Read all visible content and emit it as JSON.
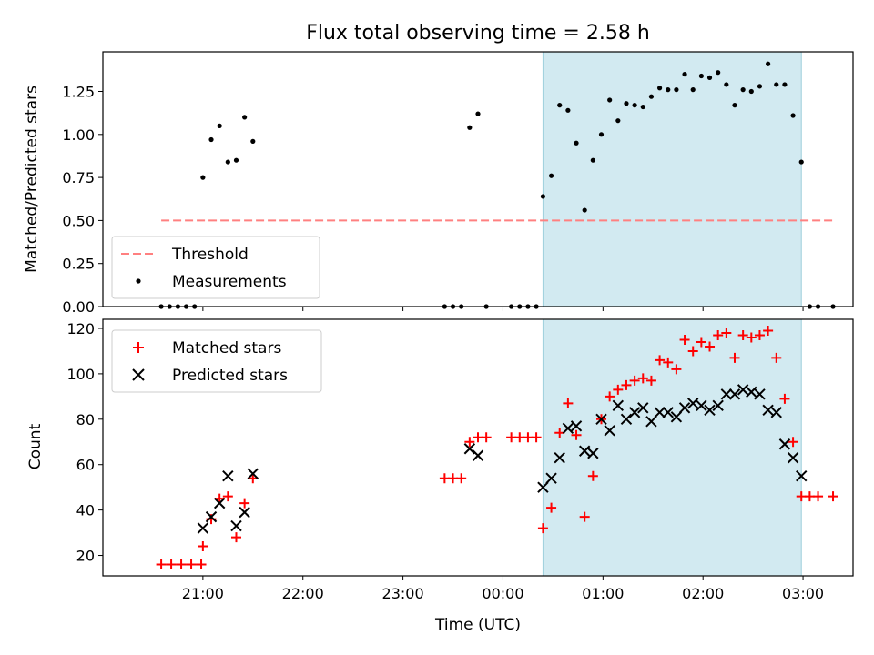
{
  "title": "Flux total observing time = 2.58 h",
  "chart_data": [
    {
      "type": "scatter",
      "name": "ratio-panel",
      "ylabel": "Matched/Predicted stars",
      "xlabel": "",
      "ylim": [
        0,
        1.48
      ],
      "yticks": [
        0.0,
        0.25,
        0.5,
        0.75,
        1.0,
        1.25
      ],
      "ytick_labels": [
        "0.00",
        "0.25",
        "0.50",
        "0.75",
        "1.00",
        "1.25"
      ],
      "grid": false,
      "legend_placement": "lower-left",
      "shaded_interval": {
        "start": "00:24",
        "end": "02:59",
        "color": "#add8e6"
      },
      "threshold": {
        "name": "Threshold",
        "value": 0.5,
        "x_start": "20:35",
        "x_end": "03:18",
        "color": "#ff8080",
        "style": "dashed"
      },
      "series": [
        {
          "name": "Measurements",
          "marker": "dot",
          "color": "#000000",
          "x": [
            "20:35",
            "20:40",
            "20:45",
            "20:50",
            "20:55",
            "21:00",
            "21:05",
            "21:10",
            "21:15",
            "21:20",
            "21:25",
            "21:30",
            "23:25",
            "23:30",
            "23:35",
            "23:40",
            "23:45",
            "23:50",
            "00:05",
            "00:10",
            "00:15",
            "00:20",
            "00:24",
            "00:29",
            "00:34",
            "00:39",
            "00:44",
            "00:49",
            "00:54",
            "00:59",
            "01:04",
            "01:09",
            "01:14",
            "01:19",
            "01:24",
            "01:29",
            "01:34",
            "01:39",
            "01:44",
            "01:49",
            "01:54",
            "01:59",
            "02:04",
            "02:09",
            "02:14",
            "02:19",
            "02:24",
            "02:29",
            "02:34",
            "02:39",
            "02:44",
            "02:49",
            "02:54",
            "02:59",
            "03:04",
            "03:09",
            "03:18"
          ],
          "y": [
            0.0,
            0.0,
            0.0,
            0.0,
            0.0,
            0.75,
            0.97,
            1.05,
            0.84,
            0.85,
            1.1,
            0.96,
            0.0,
            0.0,
            0.0,
            1.04,
            1.12,
            0.0,
            0.0,
            0.0,
            0.0,
            0.0,
            0.64,
            0.76,
            1.17,
            1.14,
            0.95,
            0.56,
            0.85,
            1.0,
            1.2,
            1.08,
            1.18,
            1.17,
            1.16,
            1.22,
            1.27,
            1.26,
            1.26,
            1.35,
            1.26,
            1.34,
            1.33,
            1.36,
            1.29,
            1.17,
            1.26,
            1.25,
            1.28,
            1.41,
            1.29,
            1.29,
            1.11,
            0.84,
            0.0,
            0.0,
            0.0
          ]
        }
      ]
    },
    {
      "type": "scatter",
      "name": "count-panel",
      "ylabel": "Count",
      "xlabel": "Time (UTC)",
      "ylim": [
        11,
        124
      ],
      "yticks": [
        20,
        40,
        60,
        80,
        100,
        120
      ],
      "ytick_labels": [
        "20",
        "40",
        "60",
        "80",
        "100",
        "120"
      ],
      "xticks": [
        "21:00",
        "22:00",
        "23:00",
        "00:00",
        "01:00",
        "02:00",
        "03:00"
      ],
      "grid": false,
      "legend_placement": "upper-left",
      "shaded_interval": {
        "start": "00:24",
        "end": "02:59",
        "color": "#add8e6"
      },
      "series": [
        {
          "name": "Matched stars",
          "marker": "plus",
          "color": "#ff0000",
          "x": [
            "20:35",
            "20:41",
            "20:47",
            "20:53",
            "20:59",
            "21:00",
            "21:05",
            "21:10",
            "21:15",
            "21:20",
            "21:25",
            "21:30",
            "23:25",
            "23:30",
            "23:35",
            "23:40",
            "23:45",
            "23:50",
            "00:05",
            "00:10",
            "00:15",
            "00:20",
            "00:24",
            "00:29",
            "00:34",
            "00:39",
            "00:44",
            "00:49",
            "00:54",
            "00:59",
            "01:04",
            "01:09",
            "01:14",
            "01:19",
            "01:24",
            "01:29",
            "01:34",
            "01:39",
            "01:44",
            "01:49",
            "01:54",
            "01:59",
            "02:04",
            "02:09",
            "02:14",
            "02:19",
            "02:24",
            "02:29",
            "02:34",
            "02:39",
            "02:44",
            "02:49",
            "02:54",
            "02:59",
            "03:04",
            "03:09",
            "03:18"
          ],
          "y": [
            16,
            16,
            16,
            16,
            16,
            24,
            36,
            45,
            46,
            28,
            43,
            54,
            54,
            54,
            54,
            70,
            72,
            72,
            72,
            72,
            72,
            72,
            32,
            41,
            74,
            87,
            73,
            37,
            55,
            80,
            90,
            93,
            95,
            97,
            98,
            97,
            106,
            105,
            102,
            115,
            110,
            114,
            112,
            117,
            118,
            107,
            117,
            116,
            117,
            119,
            107,
            89,
            70,
            46,
            46,
            46,
            46
          ]
        },
        {
          "name": "Predicted stars",
          "marker": "x",
          "color": "#000000",
          "x": [
            "21:00",
            "21:05",
            "21:10",
            "21:15",
            "21:20",
            "21:25",
            "21:30",
            "23:40",
            "23:45",
            "00:24",
            "00:29",
            "00:34",
            "00:39",
            "00:44",
            "00:49",
            "00:54",
            "00:59",
            "01:04",
            "01:09",
            "01:14",
            "01:19",
            "01:24",
            "01:29",
            "01:34",
            "01:39",
            "01:44",
            "01:49",
            "01:54",
            "01:59",
            "02:04",
            "02:09",
            "02:14",
            "02:19",
            "02:24",
            "02:29",
            "02:34",
            "02:39",
            "02:44",
            "02:49",
            "02:54",
            "02:59"
          ],
          "y": [
            32,
            37,
            43,
            55,
            33,
            39,
            56,
            67,
            64,
            50,
            54,
            63,
            76,
            77,
            66,
            65,
            80,
            75,
            86,
            80,
            83,
            85,
            79,
            83,
            83,
            81,
            85,
            87,
            86,
            84,
            86,
            91,
            91,
            93,
            92,
            91,
            84,
            83,
            69,
            63,
            55
          ]
        }
      ]
    }
  ]
}
